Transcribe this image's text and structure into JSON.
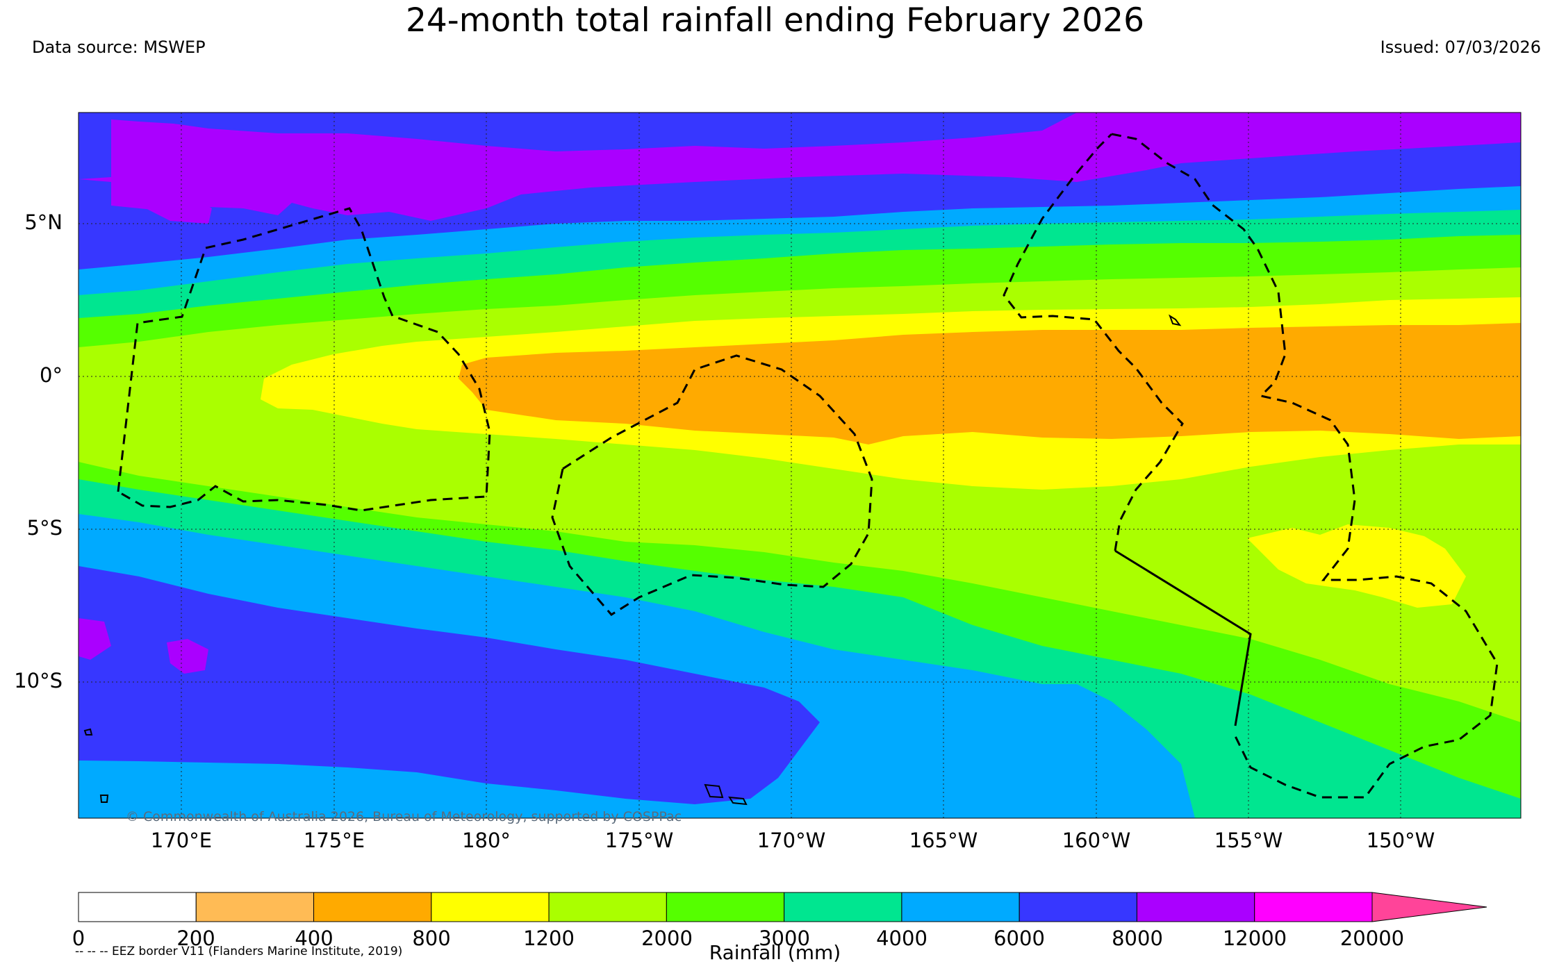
{
  "header": {
    "title": "24-month total rainfall ending February 2026",
    "source": "Data source: MSWEP",
    "issued": "Issued: 07/03/2026"
  },
  "map": {
    "region_lon_range": [
      166.6,
      -147.4
    ],
    "region_lat_range": [
      -14.4,
      8.7
    ],
    "lat_labels": [
      "5°N",
      "0°",
      "5°S",
      "10°S"
    ],
    "lon_labels": [
      "170°E",
      "175°E",
      "180°",
      "175°W",
      "170°W",
      "165°W",
      "160°W",
      "155°W",
      "150°W"
    ],
    "copyright": "© Commonwealth of Australia 2026, Bureau of Meteorology, supported by COSPPac"
  },
  "legend": {
    "title": "Rainfall (mm)",
    "ticks": [
      "0",
      "200",
      "400",
      "800",
      "1200",
      "2000",
      "3000",
      "4000",
      "6000",
      "8000",
      "12000",
      "20000"
    ],
    "colors": [
      "#ffffff",
      "#ffbb55",
      "#ffaa00",
      "#ffff00",
      "#aaff00",
      "#55ff00",
      "#00e690",
      "#00aaff",
      "#3737ff",
      "#aa00ff",
      "#ff00ff",
      "#ff4499"
    ],
    "eez_note": "-- -- -- EEZ border V11 (Flanders Marine Institute, 2019)"
  }
}
